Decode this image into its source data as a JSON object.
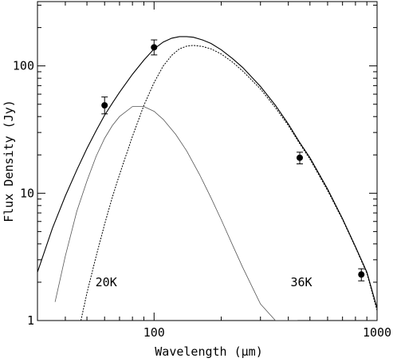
{
  "chart_data": {
    "type": "line",
    "title": "",
    "xlabel": "Wavelength (μm)",
    "ylabel": "Flux Density (Jy)",
    "x_scale": "log",
    "y_scale": "log",
    "xlim": [
      30,
      1000
    ],
    "ylim": [
      1,
      320
    ],
    "x_ticks": [
      {
        "value": 100,
        "label": "100"
      },
      {
        "value": 1000,
        "label": "1000"
      }
    ],
    "y_ticks": [
      {
        "value": 1,
        "label": "1"
      },
      {
        "value": 10,
        "label": "10"
      },
      {
        "value": 100,
        "label": "100"
      }
    ],
    "grid": false,
    "series": [
      {
        "name": "",
        "style": "solid",
        "color": "#000000",
        "x": [
          30,
          35,
          40,
          45,
          50,
          55,
          60,
          65,
          70,
          80,
          90,
          100,
          110,
          120,
          130,
          140,
          150,
          165,
          180,
          200,
          225,
          250,
          300,
          350,
          400,
          450,
          500,
          600,
          700,
          800,
          900,
          1000
        ],
        "y": [
          2.4,
          5.3,
          9.5,
          15.2,
          22.5,
          31,
          41,
          51,
          62,
          86,
          111,
          136,
          154,
          165,
          170,
          170,
          168,
          160,
          150,
          134,
          114,
          97,
          69,
          49,
          35,
          25,
          19,
          10.8,
          6.3,
          3.8,
          2.4,
          1.25
        ]
      },
      {
        "name": "",
        "style": "dotted",
        "color": "#000000",
        "x": [
          47,
          50,
          55,
          60,
          65,
          70,
          80,
          90,
          100,
          110,
          120,
          130,
          140,
          150,
          165,
          180,
          200,
          225,
          250,
          300,
          350,
          400,
          450,
          500,
          600,
          700,
          800,
          900,
          1000
        ],
        "y": [
          1.0,
          1.65,
          3.2,
          5.7,
          9.3,
          14,
          28,
          49,
          74,
          100,
          121,
          136,
          143,
          145,
          142,
          136,
          124,
          107,
          91,
          66,
          47,
          34,
          24.5,
          18.5,
          10.5,
          6.2,
          3.75,
          2.35,
          1.2
        ]
      },
      {
        "name": "",
        "style": "solid-thin",
        "color": "#555555",
        "x": [
          36,
          40,
          45,
          50,
          55,
          60,
          65,
          70,
          80,
          90,
          100,
          110,
          125,
          140,
          160,
          180,
          200,
          225,
          250,
          300,
          350,
          400,
          440
        ],
        "y": [
          1.4,
          3.2,
          7.2,
          12.5,
          19.5,
          27,
          34,
          40,
          48,
          48,
          44,
          38,
          29,
          21.5,
          14,
          9.2,
          6.2,
          3.9,
          2.6,
          1.35,
          1.0,
          1.0,
          1.0
        ]
      }
    ],
    "points": {
      "x": [
        60,
        100,
        450,
        850
      ],
      "y": [
        49,
        140,
        19,
        2.3
      ],
      "err_low": [
        42,
        122,
        17,
        2.05
      ],
      "err_high": [
        57,
        160,
        21,
        2.55
      ]
    },
    "annotations": [
      {
        "text": "20K",
        "x": 60,
        "y": 2.0
      },
      {
        "text": "36K",
        "x": 450,
        "y": 2.0
      }
    ],
    "legend": "none"
  }
}
